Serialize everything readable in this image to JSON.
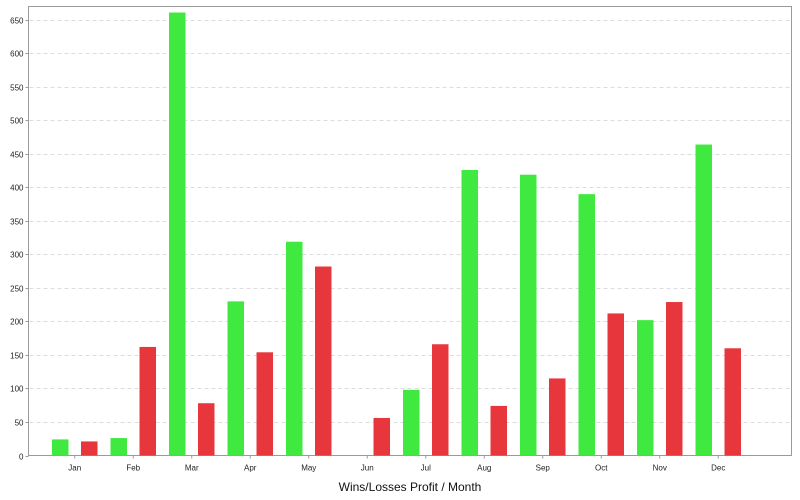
{
  "chart_data": {
    "type": "bar",
    "title": "",
    "xlabel": "Wins/Losses Profit / Month",
    "ylabel": "",
    "ylim": [
      0,
      670
    ],
    "yticks": [
      0,
      50,
      100,
      150,
      200,
      250,
      300,
      350,
      400,
      450,
      500,
      550,
      600,
      650
    ],
    "grid": true,
    "legend": "none",
    "categories": [
      "Jan",
      "Feb",
      "Mar",
      "Apr",
      "May",
      "Jun",
      "Jul",
      "Aug",
      "Sep",
      "Oct",
      "Nov",
      "Dec"
    ],
    "series": [
      {
        "color": "#3fe93f",
        "values": [
          24,
          26,
          661,
          230,
          319,
          0,
          98,
          426,
          419,
          390,
          202,
          464
        ]
      },
      {
        "color": "#e8373c",
        "values": [
          21,
          162,
          78,
          154,
          282,
          56,
          166,
          74,
          115,
          212,
          229,
          160
        ]
      }
    ]
  }
}
